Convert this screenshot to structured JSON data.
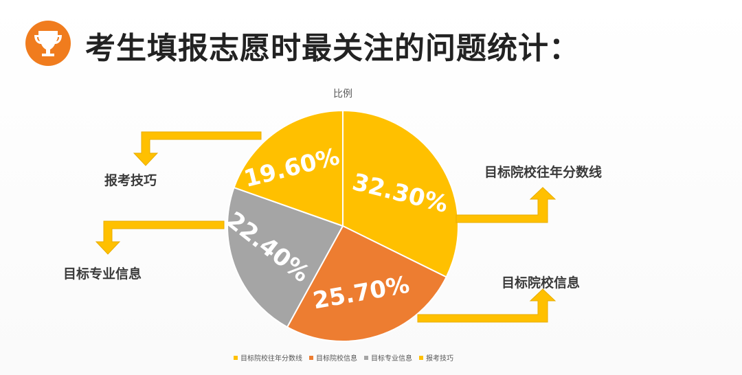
{
  "header": {
    "title": "考生填报志愿时最关注的问题统计：",
    "icon": "trophy-icon"
  },
  "colors": {
    "accent": "#f07c1e",
    "arrow": "#ffc000"
  },
  "chart_data": {
    "type": "pie",
    "title": "比例",
    "slices": [
      {
        "label": "目标院校往年分数线",
        "value": 32.3,
        "value_label": "32.30%",
        "color": "#ffc000"
      },
      {
        "label": "目标院校信息",
        "value": 25.7,
        "value_label": "25.70%",
        "color": "#ed7d31"
      },
      {
        "label": "目标专业信息",
        "value": 22.4,
        "value_label": "22.40%",
        "color": "#a5a5a5"
      },
      {
        "label": "报考技巧",
        "value": 19.6,
        "value_label": "19.60%",
        "color": "#ffc000"
      }
    ],
    "legend_position": "bottom"
  },
  "callouts": {
    "top_right": "目标院校往年分数线",
    "bottom_right": "目标院校信息",
    "top_left": "报考技巧",
    "bottom_left": "目标专业信息"
  }
}
